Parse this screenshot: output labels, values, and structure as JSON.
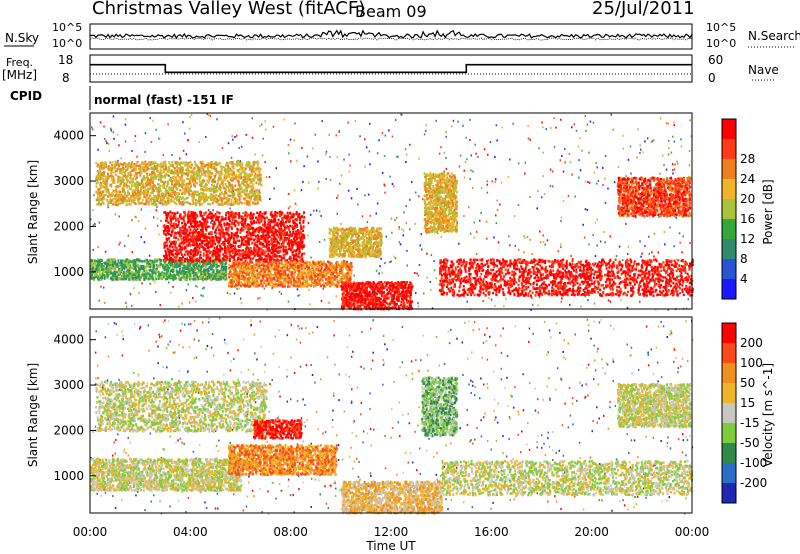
{
  "header": {
    "station": "Christmas Valley West (fitACF)",
    "beam": "Beam 09",
    "date": "25/Jul/2011"
  },
  "noise_panel": {
    "left_label": "N.Sky",
    "right_label": "N.Search",
    "left_ticks": [
      "10^5",
      "10^0"
    ],
    "right_ticks": [
      "10^5",
      "10^0"
    ]
  },
  "freq_panel": {
    "left_label_1": "Freq.",
    "left_label_2": "[MHz]",
    "right_label": "Nave",
    "left_ticks": [
      "18",
      "8"
    ],
    "right_ticks": [
      "60",
      "0"
    ],
    "freq_steps": [
      {
        "t_start": 0.0,
        "t_end": 3.0,
        "mhz": 14.4
      },
      {
        "t_start": 3.0,
        "t_end": 15.0,
        "mhz": 11.6
      },
      {
        "t_start": 15.0,
        "t_end": 24.0,
        "mhz": 14.4
      }
    ]
  },
  "cpid": {
    "label": "CPID",
    "text": "normal (fast) -151 IF"
  },
  "x_axis": {
    "title": "Time UT",
    "ticks": [
      "00:00",
      "04:00",
      "08:00",
      "12:00",
      "16:00",
      "20:00",
      "00:00"
    ]
  },
  "chart_data": [
    {
      "type": "heatmap",
      "name": "Power",
      "x": "Time UT",
      "xlim": [
        0,
        24
      ],
      "ylabel": "Slant Range [km]",
      "ylim": [
        180,
        4500
      ],
      "yticks": [
        "1000",
        "2000",
        "3000",
        "4000"
      ],
      "colorbar_label": "Power [dB]",
      "colorbar_ticks": [
        "4",
        "8",
        "12",
        "16",
        "20",
        "24",
        "28"
      ],
      "colors": [
        "#1a1aff",
        "#2a54d6",
        "#2f8a6e",
        "#34a63a",
        "#a8c23a",
        "#f0b428",
        "#f07f1e",
        "#ff3a14",
        "#ff0000"
      ],
      "echo_regions": [
        {
          "t": [
            0.0,
            5.4
          ],
          "r": [
            850,
            1300
          ],
          "level": 3
        },
        {
          "t": [
            2.9,
            8.5
          ],
          "r": [
            1250,
            2350
          ],
          "level": 8
        },
        {
          "t": [
            5.5,
            10.4
          ],
          "r": [
            700,
            1250
          ],
          "level": 6
        },
        {
          "t": [
            9.5,
            11.6
          ],
          "r": [
            1350,
            2000
          ],
          "level": 5
        },
        {
          "t": [
            10.0,
            12.8
          ],
          "r": [
            200,
            800
          ],
          "level": 8
        },
        {
          "t": [
            13.9,
            24.0
          ],
          "r": [
            500,
            1300
          ],
          "level": 8
        },
        {
          "t": [
            0.2,
            6.8
          ],
          "r": [
            2500,
            3450
          ],
          "level": 5
        },
        {
          "t": [
            13.3,
            14.6
          ],
          "r": [
            1900,
            3200
          ],
          "level": 5
        },
        {
          "t": [
            21.0,
            23.9
          ],
          "r": [
            2250,
            3100
          ],
          "level": 7
        }
      ]
    },
    {
      "type": "heatmap",
      "name": "Velocity",
      "x": "Time UT",
      "xlim": [
        0,
        24
      ],
      "ylabel": "Slant Range [km]",
      "ylim": [
        180,
        4500
      ],
      "yticks": [
        "1000",
        "2000",
        "3000",
        "4000"
      ],
      "colorbar_label": "Velocity [m s^-1]",
      "colorbar_ticks": [
        "200",
        "100",
        "50",
        "15",
        "-15",
        "-50",
        "-100",
        "-200"
      ],
      "colors": [
        "#1e28b4",
        "#2a6ec8",
        "#2e8a46",
        "#7ccc3c",
        "#c8c8c0",
        "#f0b428",
        "#f0901e",
        "#ff4818",
        "#ff0000"
      ],
      "echo_regions": [
        {
          "t": [
            0.0,
            6.0
          ],
          "r": [
            700,
            1400
          ],
          "level": 4
        },
        {
          "t": [
            0.2,
            7.0
          ],
          "r": [
            2000,
            3100
          ],
          "level": 4
        },
        {
          "t": [
            6.5,
            8.4
          ],
          "r": [
            1850,
            2250
          ],
          "level": 8
        },
        {
          "t": [
            5.5,
            9.8
          ],
          "r": [
            1050,
            1700
          ],
          "level": 6
        },
        {
          "t": [
            10.0,
            14.0
          ],
          "r": [
            200,
            900
          ],
          "level": 5
        },
        {
          "t": [
            14.0,
            24.0
          ],
          "r": [
            600,
            1350
          ],
          "level": 4
        },
        {
          "t": [
            21.0,
            23.9
          ],
          "r": [
            2100,
            3050
          ],
          "level": 4
        },
        {
          "t": [
            13.2,
            14.6
          ],
          "r": [
            1900,
            3200
          ],
          "level": 3
        }
      ]
    }
  ]
}
